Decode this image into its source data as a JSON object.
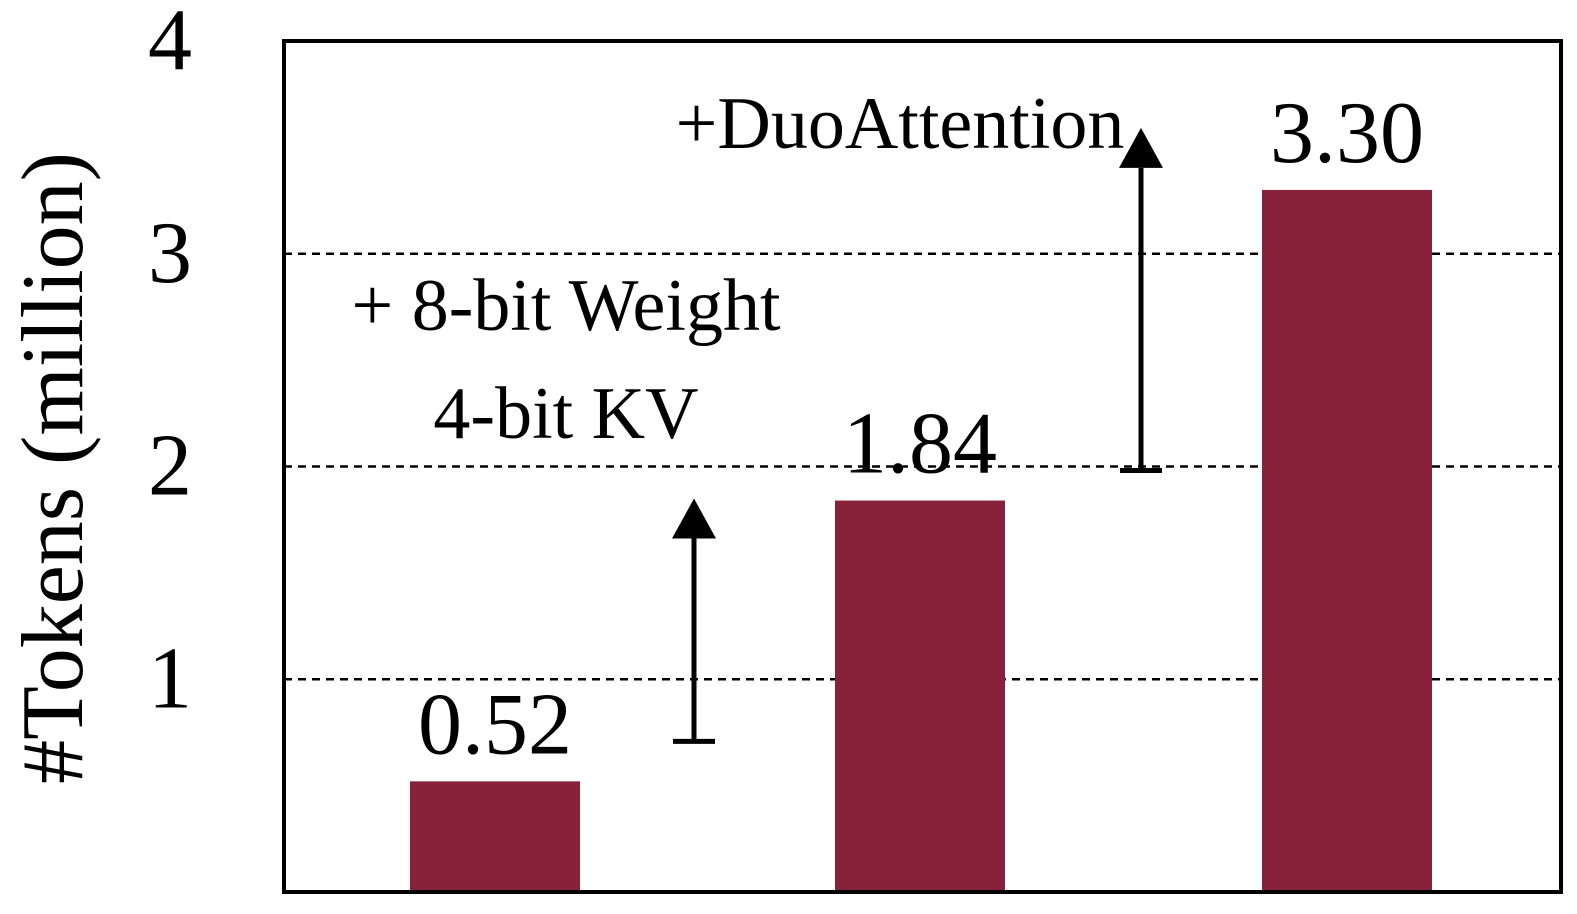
{
  "chart_data": {
    "type": "bar",
    "ylabel": "#Tokens (million)",
    "ylim": [
      0,
      4
    ],
    "yticks": [
      1,
      2,
      3,
      4
    ],
    "grid": true,
    "bar_color": "#88213A",
    "values": [
      0.52,
      1.84,
      3.3
    ],
    "value_labels": [
      "0.52",
      "1.84",
      "3.30"
    ],
    "annotations": [
      {
        "lines": [
          "+ 8-bit Weight",
          "4-bit KV"
        ],
        "from_value": 0.52,
        "to_value": 1.84
      },
      {
        "lines": [
          "+DuoAttention"
        ],
        "from_value": 1.84,
        "to_value": 3.3
      }
    ]
  }
}
